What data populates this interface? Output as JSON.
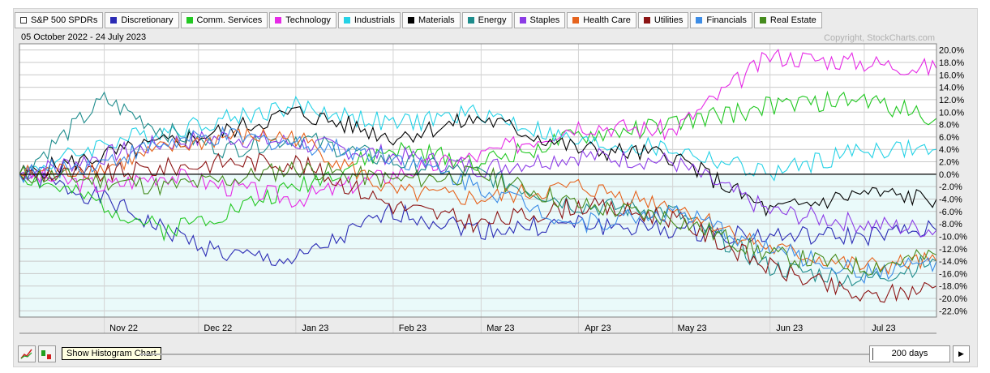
{
  "header": {
    "date_range": "05 October 2022 - 24 July 2023",
    "copyright": "Copyright, StockCharts.com"
  },
  "toolbar": {
    "tooltip": "Show Histogram Chart",
    "period": "200 days",
    "play_icon": "play-icon",
    "line_chart_icon": "line-chart-icon",
    "histogram_icon": "histogram-icon"
  },
  "chart_data": {
    "type": "line",
    "y_unit": "%",
    "ylim": [
      -23,
      21
    ],
    "x_range": [
      "2022-10-05",
      "2023-07-24"
    ],
    "y_ticks": [
      20,
      18,
      16,
      14,
      12,
      10,
      8,
      6,
      4,
      2,
      0,
      -2,
      -4,
      -6,
      -8,
      -10,
      -12,
      -14,
      -16,
      -18,
      -20,
      -22
    ],
    "y_tick_labels": [
      "20.0%",
      "18.0%",
      "16.0%",
      "14.0%",
      "12.0%",
      "10.0%",
      "8.0%",
      "6.0%",
      "4.0%",
      "2.0%",
      "0.0%",
      "-2.0%",
      "-4.0%",
      "-6.0%",
      "-8.0%",
      "-10.0%",
      "-12.0%",
      "-14.0%",
      "-16.0%",
      "-18.0%",
      "-20.0%",
      "-22.0%"
    ],
    "x_ticks": [
      "2022-11-01",
      "2022-12-01",
      "2023-01-01",
      "2023-02-01",
      "2023-03-01",
      "2023-04-01",
      "2023-05-01",
      "2023-06-01",
      "2023-07-01"
    ],
    "x_tick_labels": [
      "Nov 22",
      "Dec 22",
      "Jan 23",
      "Feb 23",
      "Mar 23",
      "Apr 23",
      "May 23",
      "Jun 23",
      "Jul 23"
    ],
    "grid": true,
    "legend_position": "top",
    "benchmark": {
      "name": "S&P 500 SPDRs",
      "value": 0
    },
    "series": [
      {
        "name": "Discretionary",
        "color": "#2b2bb5",
        "x": [
          "2022-10-05",
          "2022-11-01",
          "2022-11-20",
          "2022-12-10",
          "2023-01-01",
          "2023-02-01",
          "2023-03-01",
          "2023-04-01",
          "2023-05-01",
          "2023-06-01",
          "2023-07-01",
          "2023-07-24"
        ],
        "values": [
          0,
          -4,
          -9,
          -13,
          -14,
          -6,
          -9,
          -8,
          -9,
          -10,
          -10,
          -9
        ]
      },
      {
        "name": "Comm. Services",
        "color": "#22c822",
        "x": [
          "2022-10-05",
          "2022-11-01",
          "2022-11-20",
          "2022-12-10",
          "2023-01-01",
          "2023-02-01",
          "2023-03-01",
          "2023-04-01",
          "2023-05-01",
          "2023-06-01",
          "2023-07-01",
          "2023-07-24"
        ],
        "values": [
          0,
          -5,
          -9,
          -6,
          -2,
          4,
          2,
          6,
          8,
          11,
          12,
          9
        ]
      },
      {
        "name": "Technology",
        "color": "#e62ae6",
        "x": [
          "2022-10-05",
          "2022-11-01",
          "2022-11-20",
          "2022-12-10",
          "2023-01-01",
          "2023-02-01",
          "2023-03-01",
          "2023-04-01",
          "2023-05-01",
          "2023-06-01",
          "2023-07-01",
          "2023-07-24"
        ],
        "values": [
          0,
          -2,
          0,
          -2,
          -4,
          0,
          3,
          8,
          7,
          19,
          18,
          17
        ]
      },
      {
        "name": "Industrials",
        "color": "#25d2e6",
        "x": [
          "2022-10-05",
          "2022-11-01",
          "2022-11-20",
          "2022-12-10",
          "2023-01-01",
          "2023-02-01",
          "2023-03-01",
          "2023-04-01",
          "2023-05-01",
          "2023-06-01",
          "2023-07-01",
          "2023-07-24"
        ],
        "values": [
          0,
          5,
          7,
          9,
          11,
          8,
          10,
          5,
          4,
          0,
          4,
          4
        ]
      },
      {
        "name": "Materials",
        "color": "#000000",
        "x": [
          "2022-10-05",
          "2022-11-01",
          "2022-11-20",
          "2022-12-10",
          "2023-01-01",
          "2023-02-01",
          "2023-03-01",
          "2023-04-01",
          "2023-05-01",
          "2023-06-01",
          "2023-07-01",
          "2023-07-24"
        ],
        "values": [
          0,
          3,
          5,
          7,
          10,
          6,
          9,
          4,
          3,
          -6,
          -3,
          -4
        ]
      },
      {
        "name": "Energy",
        "color": "#1e8c8c",
        "x": [
          "2022-10-05",
          "2022-11-01",
          "2022-11-20",
          "2022-12-10",
          "2023-01-01",
          "2023-02-01",
          "2023-03-01",
          "2023-04-01",
          "2023-05-01",
          "2023-06-01",
          "2023-07-01",
          "2023-07-24"
        ],
        "values": [
          0,
          12,
          7,
          4,
          6,
          2,
          0,
          -5,
          -6,
          -15,
          -17,
          -14
        ]
      },
      {
        "name": "Staples",
        "color": "#8c3ce6",
        "x": [
          "2022-10-05",
          "2022-11-01",
          "2022-11-20",
          "2022-12-10",
          "2023-01-01",
          "2023-02-01",
          "2023-03-01",
          "2023-04-01",
          "2023-05-01",
          "2023-06-01",
          "2023-07-01",
          "2023-07-24"
        ],
        "values": [
          0,
          3,
          5,
          6,
          5,
          3,
          1,
          3,
          2,
          -6,
          -8,
          -9
        ]
      },
      {
        "name": "Health Care",
        "color": "#e6641e",
        "x": [
          "2022-10-05",
          "2022-11-01",
          "2022-11-20",
          "2022-12-10",
          "2023-01-01",
          "2023-02-01",
          "2023-03-01",
          "2023-04-01",
          "2023-05-01",
          "2023-06-01",
          "2023-07-01",
          "2023-07-24"
        ],
        "values": [
          0,
          1,
          4,
          6,
          6,
          -3,
          -4,
          -2,
          -5,
          -12,
          -15,
          -14
        ]
      },
      {
        "name": "Utilities",
        "color": "#8c1414",
        "x": [
          "2022-10-05",
          "2022-11-01",
          "2022-11-20",
          "2022-12-10",
          "2023-01-01",
          "2023-02-01",
          "2023-03-01",
          "2023-04-01",
          "2023-05-01",
          "2023-06-01",
          "2023-07-01",
          "2023-07-24"
        ],
        "values": [
          0,
          0,
          1,
          2,
          2,
          -5,
          -8,
          -5,
          -7,
          -15,
          -20,
          -18
        ]
      },
      {
        "name": "Financials",
        "color": "#3c8ce6",
        "x": [
          "2022-10-05",
          "2022-11-01",
          "2022-11-20",
          "2022-12-10",
          "2023-01-01",
          "2023-02-01",
          "2023-03-01",
          "2023-04-01",
          "2023-05-01",
          "2023-06-01",
          "2023-07-01",
          "2023-07-24"
        ],
        "values": [
          0,
          2,
          5,
          6,
          5,
          3,
          -2,
          -8,
          -6,
          -12,
          -16,
          -14
        ]
      },
      {
        "name": "Real Estate",
        "color": "#468c1e",
        "x": [
          "2022-10-05",
          "2022-11-01",
          "2022-11-20",
          "2022-12-10",
          "2023-01-01",
          "2023-02-01",
          "2023-03-01",
          "2023-04-01",
          "2023-05-01",
          "2023-06-01",
          "2023-07-01",
          "2023-07-24"
        ],
        "values": [
          0,
          -1,
          -2,
          -1,
          1,
          -1,
          0,
          -5,
          -7,
          -13,
          -15,
          -13
        ]
      }
    ]
  }
}
